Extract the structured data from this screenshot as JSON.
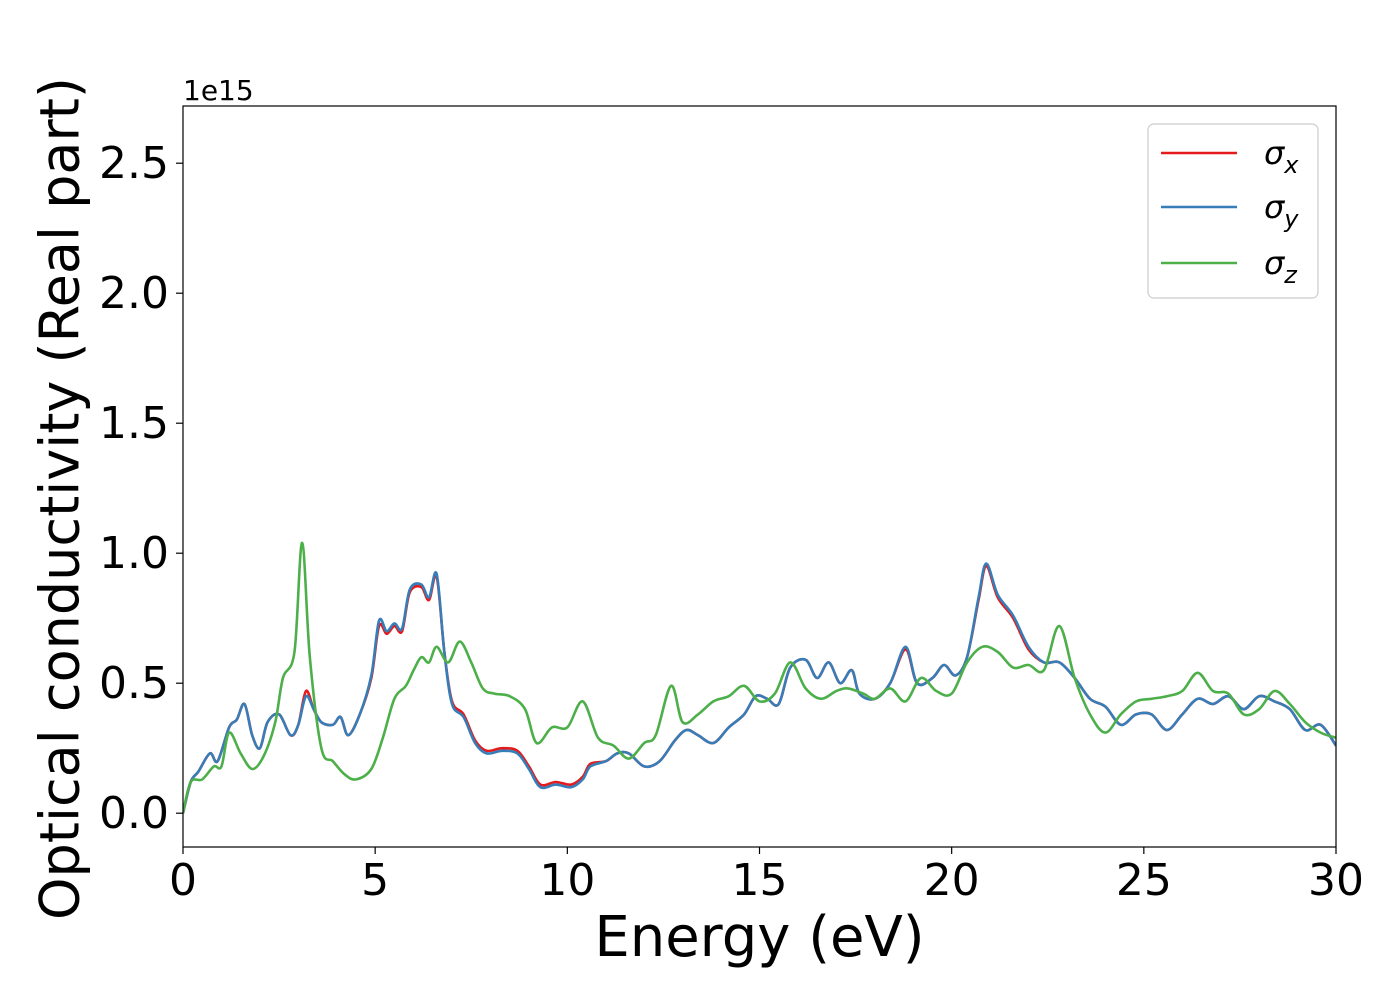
{
  "chart_data": {
    "type": "line",
    "xlabel": "Energy (eV)",
    "ylabel": "Optical conductivity (Real part)",
    "y_offset_label": "1e15",
    "xlim": [
      0,
      30
    ],
    "ylim": [
      -0.13,
      2.72
    ],
    "x_ticks": [
      0,
      5,
      10,
      15,
      20,
      25,
      30
    ],
    "x_tick_labels": [
      "0",
      "5",
      "10",
      "15",
      "20",
      "25",
      "30"
    ],
    "y_ticks": [
      0.0,
      0.5,
      1.0,
      1.5,
      2.0,
      2.5
    ],
    "y_tick_labels": [
      "0.0",
      "0.5",
      "1.0",
      "1.5",
      "2.0",
      "2.5"
    ],
    "grid": false,
    "legend_position": "top-right",
    "series": [
      {
        "name": "σx",
        "color": "#e41a1c",
        "points": [
          [
            0,
            0
          ],
          [
            0.2,
            0.12
          ],
          [
            0.4,
            0.16
          ],
          [
            0.7,
            0.23
          ],
          [
            0.9,
            0.2
          ],
          [
            1.2,
            0.33
          ],
          [
            1.4,
            0.36
          ],
          [
            1.6,
            0.42
          ],
          [
            1.8,
            0.3
          ],
          [
            2.0,
            0.25
          ],
          [
            2.2,
            0.35
          ],
          [
            2.5,
            0.38
          ],
          [
            2.8,
            0.3
          ],
          [
            3.0,
            0.34
          ],
          [
            3.2,
            0.47
          ],
          [
            3.4,
            0.4
          ],
          [
            3.6,
            0.35
          ],
          [
            3.9,
            0.34
          ],
          [
            4.1,
            0.37
          ],
          [
            4.3,
            0.3
          ],
          [
            4.6,
            0.38
          ],
          [
            4.9,
            0.52
          ],
          [
            5.1,
            0.72
          ],
          [
            5.3,
            0.69
          ],
          [
            5.5,
            0.72
          ],
          [
            5.7,
            0.7
          ],
          [
            5.9,
            0.85
          ],
          [
            6.2,
            0.87
          ],
          [
            6.4,
            0.82
          ],
          [
            6.6,
            0.91
          ],
          [
            6.8,
            0.62
          ],
          [
            7.0,
            0.43
          ],
          [
            7.3,
            0.38
          ],
          [
            7.6,
            0.28
          ],
          [
            7.9,
            0.24
          ],
          [
            8.3,
            0.25
          ],
          [
            8.7,
            0.24
          ],
          [
            9.0,
            0.18
          ],
          [
            9.3,
            0.11
          ],
          [
            9.7,
            0.12
          ],
          [
            10.1,
            0.11
          ],
          [
            10.4,
            0.14
          ],
          [
            10.6,
            0.19
          ],
          [
            11.0,
            0.2
          ],
          [
            11.3,
            0.23
          ],
          [
            11.6,
            0.23
          ],
          [
            12.0,
            0.18
          ],
          [
            12.4,
            0.2
          ],
          [
            12.8,
            0.28
          ],
          [
            13.1,
            0.32
          ],
          [
            13.4,
            0.3
          ],
          [
            13.8,
            0.27
          ],
          [
            14.2,
            0.33
          ],
          [
            14.6,
            0.38
          ],
          [
            14.9,
            0.45
          ],
          [
            15.2,
            0.44
          ],
          [
            15.5,
            0.42
          ],
          [
            15.8,
            0.56
          ],
          [
            16.2,
            0.59
          ],
          [
            16.5,
            0.52
          ],
          [
            16.8,
            0.58
          ],
          [
            17.1,
            0.5
          ],
          [
            17.4,
            0.55
          ],
          [
            17.6,
            0.46
          ],
          [
            18.0,
            0.44
          ],
          [
            18.4,
            0.5
          ],
          [
            18.8,
            0.63
          ],
          [
            19.1,
            0.5
          ],
          [
            19.5,
            0.52
          ],
          [
            19.8,
            0.57
          ],
          [
            20.1,
            0.53
          ],
          [
            20.4,
            0.6
          ],
          [
            20.7,
            0.82
          ],
          [
            20.9,
            0.95
          ],
          [
            21.2,
            0.83
          ],
          [
            21.6,
            0.75
          ],
          [
            22.0,
            0.63
          ],
          [
            22.4,
            0.58
          ],
          [
            22.8,
            0.58
          ],
          [
            23.2,
            0.52
          ],
          [
            23.6,
            0.44
          ],
          [
            24.0,
            0.41
          ],
          [
            24.4,
            0.34
          ],
          [
            24.8,
            0.38
          ],
          [
            25.2,
            0.38
          ],
          [
            25.6,
            0.32
          ],
          [
            26.0,
            0.38
          ],
          [
            26.4,
            0.44
          ],
          [
            26.8,
            0.42
          ],
          [
            27.2,
            0.45
          ],
          [
            27.6,
            0.4
          ],
          [
            28.0,
            0.45
          ],
          [
            28.4,
            0.43
          ],
          [
            28.8,
            0.4
          ],
          [
            29.2,
            0.32
          ],
          [
            29.6,
            0.34
          ],
          [
            30.0,
            0.26
          ]
        ]
      },
      {
        "name": "σy",
        "color": "#377eb8",
        "points": [
          [
            0,
            0
          ],
          [
            0.2,
            0.12
          ],
          [
            0.4,
            0.16
          ],
          [
            0.7,
            0.23
          ],
          [
            0.9,
            0.2
          ],
          [
            1.2,
            0.33
          ],
          [
            1.4,
            0.36
          ],
          [
            1.6,
            0.42
          ],
          [
            1.8,
            0.3
          ],
          [
            2.0,
            0.25
          ],
          [
            2.2,
            0.35
          ],
          [
            2.5,
            0.38
          ],
          [
            2.8,
            0.3
          ],
          [
            3.0,
            0.34
          ],
          [
            3.2,
            0.45
          ],
          [
            3.4,
            0.4
          ],
          [
            3.6,
            0.35
          ],
          [
            3.9,
            0.34
          ],
          [
            4.1,
            0.37
          ],
          [
            4.3,
            0.3
          ],
          [
            4.6,
            0.38
          ],
          [
            4.9,
            0.53
          ],
          [
            5.1,
            0.74
          ],
          [
            5.3,
            0.7
          ],
          [
            5.5,
            0.73
          ],
          [
            5.7,
            0.71
          ],
          [
            5.9,
            0.86
          ],
          [
            6.2,
            0.88
          ],
          [
            6.4,
            0.83
          ],
          [
            6.6,
            0.92
          ],
          [
            6.8,
            0.62
          ],
          [
            7.0,
            0.42
          ],
          [
            7.3,
            0.37
          ],
          [
            7.6,
            0.27
          ],
          [
            7.9,
            0.23
          ],
          [
            8.3,
            0.24
          ],
          [
            8.7,
            0.23
          ],
          [
            9.0,
            0.17
          ],
          [
            9.3,
            0.1
          ],
          [
            9.7,
            0.11
          ],
          [
            10.1,
            0.1
          ],
          [
            10.4,
            0.13
          ],
          [
            10.6,
            0.18
          ],
          [
            11.0,
            0.2
          ],
          [
            11.3,
            0.23
          ],
          [
            11.6,
            0.23
          ],
          [
            12.0,
            0.18
          ],
          [
            12.4,
            0.2
          ],
          [
            12.8,
            0.28
          ],
          [
            13.1,
            0.32
          ],
          [
            13.4,
            0.3
          ],
          [
            13.8,
            0.27
          ],
          [
            14.2,
            0.33
          ],
          [
            14.6,
            0.38
          ],
          [
            14.9,
            0.45
          ],
          [
            15.2,
            0.44
          ],
          [
            15.5,
            0.42
          ],
          [
            15.8,
            0.56
          ],
          [
            16.2,
            0.59
          ],
          [
            16.5,
            0.52
          ],
          [
            16.8,
            0.58
          ],
          [
            17.1,
            0.5
          ],
          [
            17.4,
            0.55
          ],
          [
            17.6,
            0.46
          ],
          [
            18.0,
            0.44
          ],
          [
            18.4,
            0.5
          ],
          [
            18.8,
            0.64
          ],
          [
            19.1,
            0.5
          ],
          [
            19.5,
            0.52
          ],
          [
            19.8,
            0.57
          ],
          [
            20.1,
            0.53
          ],
          [
            20.4,
            0.6
          ],
          [
            20.7,
            0.83
          ],
          [
            20.9,
            0.96
          ],
          [
            21.2,
            0.84
          ],
          [
            21.6,
            0.76
          ],
          [
            22.0,
            0.64
          ],
          [
            22.4,
            0.58
          ],
          [
            22.8,
            0.58
          ],
          [
            23.2,
            0.52
          ],
          [
            23.6,
            0.44
          ],
          [
            24.0,
            0.41
          ],
          [
            24.4,
            0.34
          ],
          [
            24.8,
            0.38
          ],
          [
            25.2,
            0.38
          ],
          [
            25.6,
            0.32
          ],
          [
            26.0,
            0.38
          ],
          [
            26.4,
            0.44
          ],
          [
            26.8,
            0.42
          ],
          [
            27.2,
            0.45
          ],
          [
            27.6,
            0.4
          ],
          [
            28.0,
            0.45
          ],
          [
            28.4,
            0.43
          ],
          [
            28.8,
            0.4
          ],
          [
            29.2,
            0.32
          ],
          [
            29.6,
            0.34
          ],
          [
            30.0,
            0.26
          ]
        ]
      },
      {
        "name": "σz",
        "color": "#4daf4a",
        "points": [
          [
            0,
            0
          ],
          [
            0.2,
            0.12
          ],
          [
            0.5,
            0.13
          ],
          [
            0.8,
            0.18
          ],
          [
            1.0,
            0.18
          ],
          [
            1.2,
            0.31
          ],
          [
            1.5,
            0.23
          ],
          [
            1.8,
            0.17
          ],
          [
            2.1,
            0.22
          ],
          [
            2.4,
            0.35
          ],
          [
            2.6,
            0.52
          ],
          [
            2.9,
            0.62
          ],
          [
            3.1,
            1.04
          ],
          [
            3.3,
            0.6
          ],
          [
            3.6,
            0.25
          ],
          [
            3.9,
            0.2
          ],
          [
            4.2,
            0.15
          ],
          [
            4.5,
            0.13
          ],
          [
            4.9,
            0.17
          ],
          [
            5.2,
            0.29
          ],
          [
            5.5,
            0.44
          ],
          [
            5.8,
            0.49
          ],
          [
            6.0,
            0.55
          ],
          [
            6.2,
            0.6
          ],
          [
            6.4,
            0.58
          ],
          [
            6.6,
            0.64
          ],
          [
            6.9,
            0.58
          ],
          [
            7.2,
            0.66
          ],
          [
            7.5,
            0.58
          ],
          [
            7.8,
            0.48
          ],
          [
            8.1,
            0.46
          ],
          [
            8.5,
            0.45
          ],
          [
            8.9,
            0.4
          ],
          [
            9.2,
            0.27
          ],
          [
            9.6,
            0.33
          ],
          [
            10.0,
            0.33
          ],
          [
            10.4,
            0.43
          ],
          [
            10.8,
            0.29
          ],
          [
            11.2,
            0.26
          ],
          [
            11.6,
            0.21
          ],
          [
            12.0,
            0.27
          ],
          [
            12.3,
            0.3
          ],
          [
            12.7,
            0.49
          ],
          [
            13.0,
            0.35
          ],
          [
            13.4,
            0.38
          ],
          [
            13.8,
            0.43
          ],
          [
            14.2,
            0.45
          ],
          [
            14.6,
            0.49
          ],
          [
            15.0,
            0.43
          ],
          [
            15.4,
            0.46
          ],
          [
            15.8,
            0.58
          ],
          [
            16.2,
            0.48
          ],
          [
            16.6,
            0.44
          ],
          [
            17.0,
            0.47
          ],
          [
            17.3,
            0.48
          ],
          [
            17.7,
            0.46
          ],
          [
            18.0,
            0.44
          ],
          [
            18.4,
            0.48
          ],
          [
            18.8,
            0.43
          ],
          [
            19.2,
            0.52
          ],
          [
            19.6,
            0.47
          ],
          [
            20.0,
            0.46
          ],
          [
            20.4,
            0.58
          ],
          [
            20.8,
            0.64
          ],
          [
            21.2,
            0.62
          ],
          [
            21.6,
            0.56
          ],
          [
            22.0,
            0.57
          ],
          [
            22.4,
            0.55
          ],
          [
            22.8,
            0.72
          ],
          [
            23.2,
            0.52
          ],
          [
            23.6,
            0.38
          ],
          [
            24.0,
            0.31
          ],
          [
            24.4,
            0.38
          ],
          [
            24.8,
            0.43
          ],
          [
            25.2,
            0.44
          ],
          [
            25.6,
            0.45
          ],
          [
            26.0,
            0.47
          ],
          [
            26.4,
            0.54
          ],
          [
            26.8,
            0.47
          ],
          [
            27.2,
            0.46
          ],
          [
            27.6,
            0.38
          ],
          [
            28.0,
            0.4
          ],
          [
            28.4,
            0.47
          ],
          [
            28.8,
            0.42
          ],
          [
            29.2,
            0.35
          ],
          [
            29.6,
            0.31
          ],
          [
            30.0,
            0.29
          ]
        ]
      }
    ]
  }
}
